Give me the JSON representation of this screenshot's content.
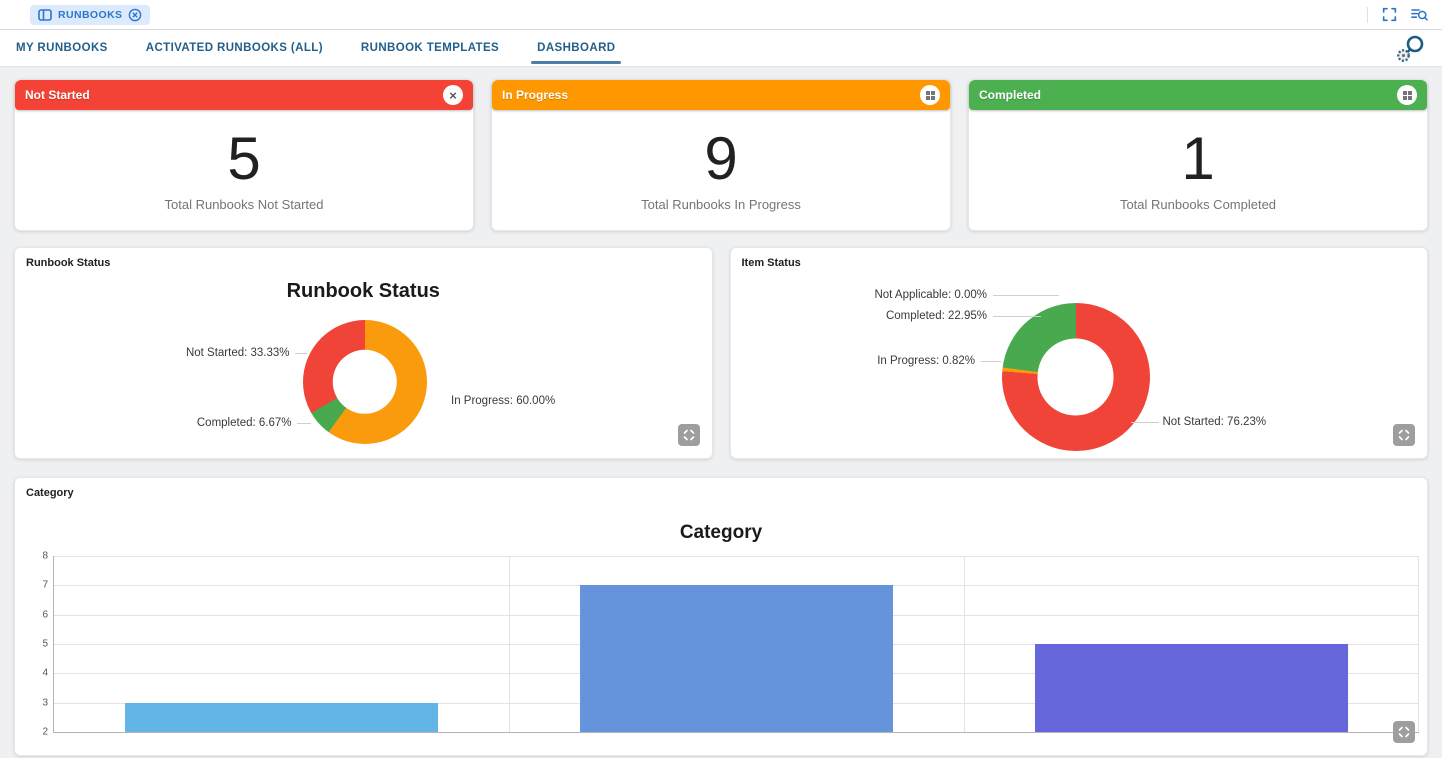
{
  "colors": {
    "accent_blue": "#2F74C9",
    "tab_text": "#235F8C",
    "tab_underline": "#4C7FA8",
    "page_background": "#EFF0F1"
  },
  "topbar": {
    "chip": {
      "label": "RUNBOOKS",
      "icon": "window-layout-icon",
      "close_icon": "close-circle-icon"
    },
    "right_icons": [
      "fullscreen-icon",
      "list-search-icon"
    ]
  },
  "tabs": {
    "items": [
      {
        "label": "MY RUNBOOKS",
        "active": false
      },
      {
        "label": "ACTIVATED RUNBOOKS (ALL)",
        "active": false
      },
      {
        "label": "RUNBOOK TEMPLATES",
        "active": false
      },
      {
        "label": "DASHBOARD",
        "active": true
      }
    ],
    "right_icon": "advanced-search-icon"
  },
  "stat_cards": [
    {
      "title": "Not Started",
      "value": "5",
      "subtitle": "Total Runbooks Not Started",
      "header_color": "#F44336",
      "header_icon": "close-icon"
    },
    {
      "title": "In Progress",
      "value": "9",
      "subtitle": "Total Runbooks In Progress",
      "header_color": "#FF9800",
      "header_icon": "grid-icon"
    },
    {
      "title": "Completed",
      "value": "1",
      "subtitle": "Total Runbooks Completed",
      "header_color": "#4CAF50",
      "header_icon": "grid-icon"
    }
  ],
  "chart_data": [
    {
      "type": "pie",
      "donut": true,
      "card_label": "Runbook Status",
      "title": "Runbook Status",
      "start_angle_deg": 0,
      "slices": [
        {
          "label": "In Progress",
          "value": 60.0,
          "color": "#F99B0C",
          "label_text": "In Progress: 60.00%"
        },
        {
          "label": "Completed",
          "value": 6.67,
          "color": "#48A94E",
          "label_text": "Completed: 6.67%"
        },
        {
          "label": "Not Started",
          "value": 33.33,
          "color": "#EF4437",
          "label_text": "Not Started: 33.33%"
        }
      ]
    },
    {
      "type": "pie",
      "donut": true,
      "card_label": "Item Status",
      "title": "",
      "start_angle_deg": 0,
      "slices": [
        {
          "label": "Not Started",
          "value": 76.23,
          "color": "#EF4437",
          "label_text": "Not Started: 76.23%"
        },
        {
          "label": "In Progress",
          "value": 0.82,
          "color": "#F99B0C",
          "label_text": "In Progress: 0.82%"
        },
        {
          "label": "Completed",
          "value": 22.95,
          "color": "#48A94E",
          "label_text": "Completed: 22.95%"
        },
        {
          "label": "Not Applicable",
          "value": 0.0,
          "color": "#9E9E9E",
          "label_text": "Not Applicable: 0.00%"
        }
      ]
    },
    {
      "type": "bar",
      "card_label": "Category",
      "title": "Category",
      "categories": [
        "",
        "",
        ""
      ],
      "values": [
        3,
        7,
        5
      ],
      "colors": [
        "#62B5E5",
        "#6593DC",
        "#6466D9"
      ],
      "ylim": [
        2,
        8
      ],
      "yticks": [
        2,
        3,
        4,
        5,
        6,
        7,
        8
      ],
      "grid": true,
      "legend_position": "none"
    }
  ]
}
